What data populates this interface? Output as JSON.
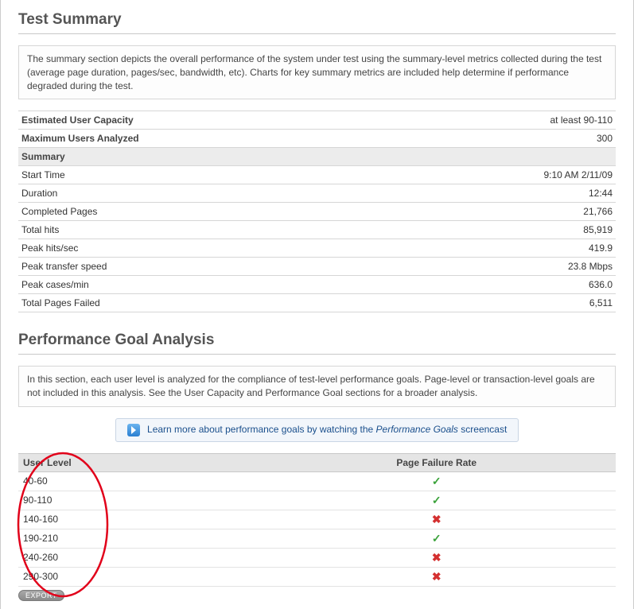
{
  "test_summary": {
    "title": "Test Summary",
    "description": "The summary section depicts the overall performance of the system under test using the summary-level metrics collected during the test (average page duration, pages/sec, bandwidth, etc). Charts for key summary metrics are included help determine if performance degraded during the test.",
    "groups": [
      {
        "rows": [
          {
            "label": "Estimated User Capacity",
            "value": "at least 90-110"
          },
          {
            "label": "Maximum Users Analyzed",
            "value": "300"
          }
        ]
      },
      {
        "header": "Summary",
        "rows": [
          {
            "label": "Start Time",
            "value": "9:10 AM 2/11/09"
          },
          {
            "label": "Duration",
            "value": "12:44"
          },
          {
            "label": "Completed Pages",
            "value": "21,766"
          },
          {
            "label": "Total hits",
            "value": "85,919"
          },
          {
            "label": "Peak hits/sec",
            "value": "419.9"
          },
          {
            "label": "Peak transfer speed",
            "value": "23.8 Mbps"
          },
          {
            "label": "Peak cases/min",
            "value": "636.0"
          },
          {
            "label": "Total Pages Failed",
            "value": "6,511"
          }
        ]
      }
    ]
  },
  "goal_analysis": {
    "title": "Performance Goal Analysis",
    "description": "In this section, each user level is analyzed for the compliance of test-level performance goals. Page-level or transaction-level goals are not included in this analysis. See the User Capacity and Performance Goal sections for a broader analysis.",
    "learn_more_pre": "Learn more about performance goals by watching the ",
    "learn_more_link": "Performance Goals",
    "learn_more_post": " screencast",
    "columns": [
      "User Level",
      "Page Failure Rate"
    ],
    "rows": [
      {
        "range": "40-60",
        "pass": true
      },
      {
        "range": "90-110",
        "pass": true
      },
      {
        "range": "140-160",
        "pass": false
      },
      {
        "range": "190-210",
        "pass": true
      },
      {
        "range": "240-260",
        "pass": false
      },
      {
        "range": "290-300",
        "pass": false
      }
    ],
    "export_label": "EXPORT"
  },
  "annotation": {
    "stroke": "#e1001a",
    "stroke_width": 2.5
  }
}
